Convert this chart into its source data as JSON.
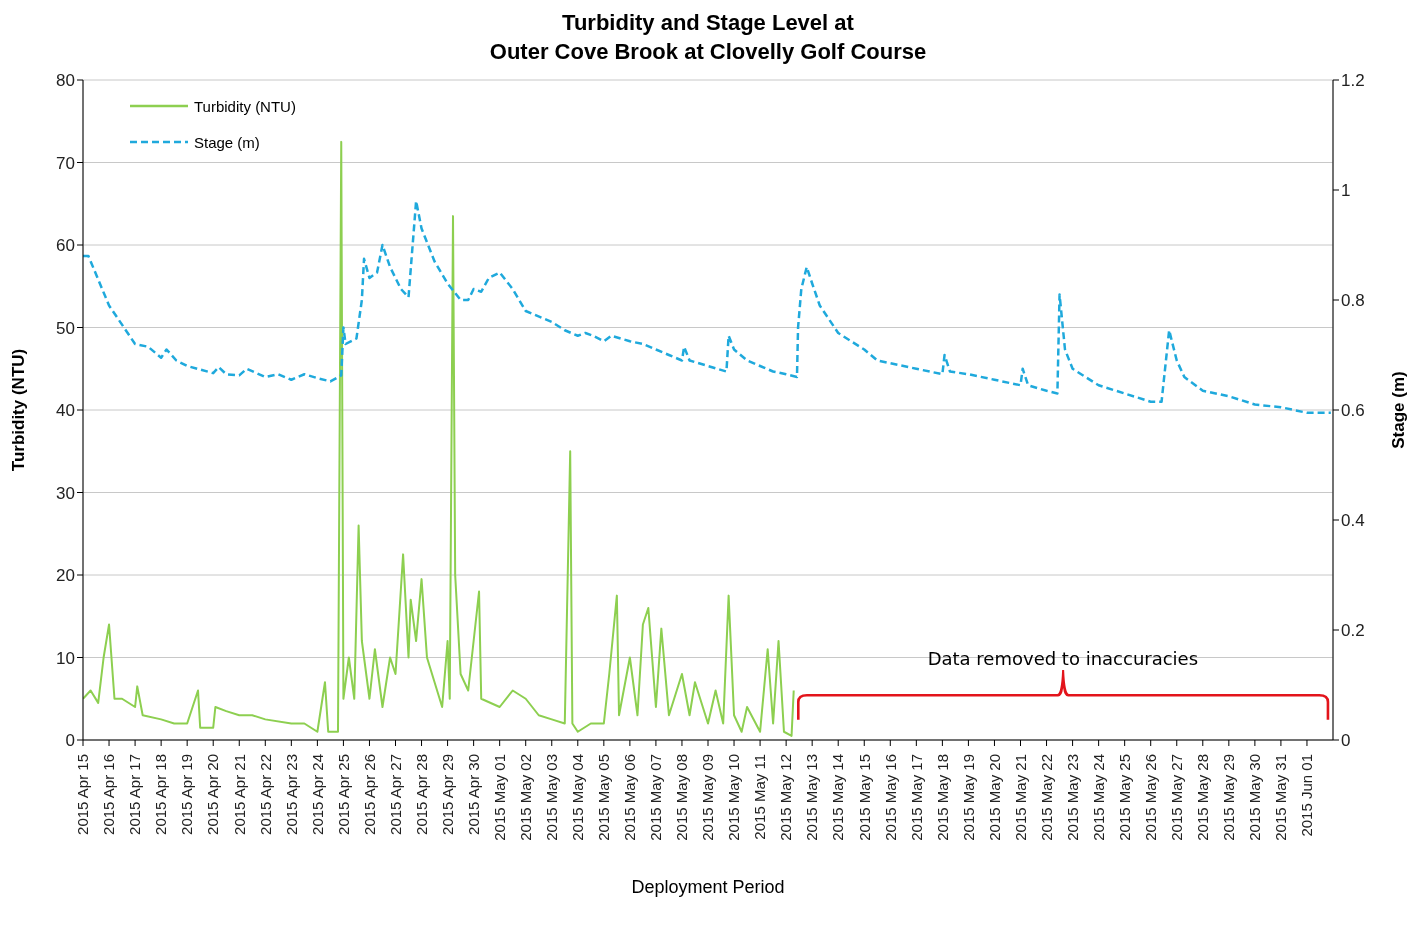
{
  "chart_data": {
    "type": "line",
    "title": "Turbidity and Stage Level at\nOuter Cove Brook at Clovelly Golf Course",
    "xlabel": "Deployment  Period",
    "ylabel": "Turbidity (NTU)",
    "y2label": "Stage (m)",
    "annotations": [
      "Data removed to inaccuracies"
    ],
    "xlim": [
      "2015-04-15",
      "2015-06-02"
    ],
    "xticks": [
      {
        "value": "2015-04-15",
        "label": "2015 Apr 15"
      },
      {
        "value": "2015-04-16",
        "label": "2015 Apr 16"
      },
      {
        "value": "2015-04-17",
        "label": "2015 Apr 17"
      },
      {
        "value": "2015-04-18",
        "label": "2015 Apr 18"
      },
      {
        "value": "2015-04-19",
        "label": "2015 Apr 19"
      },
      {
        "value": "2015-04-20",
        "label": "2015 Apr 20"
      },
      {
        "value": "2015-04-21",
        "label": "2015 Apr 21"
      },
      {
        "value": "2015-04-22",
        "label": "2015 Apr 22"
      },
      {
        "value": "2015-04-23",
        "label": "2015 Apr 23"
      },
      {
        "value": "2015-04-24",
        "label": "2015 Apr 24"
      },
      {
        "value": "2015-04-25",
        "label": "2015 Apr 25"
      },
      {
        "value": "2015-04-26",
        "label": "2015 Apr 26"
      },
      {
        "value": "2015-04-27",
        "label": "2015 Apr 27"
      },
      {
        "value": "2015-04-28",
        "label": "2015 Apr 28"
      },
      {
        "value": "2015-04-29",
        "label": "2015 Apr 29"
      },
      {
        "value": "2015-04-30",
        "label": "2015 Apr 30"
      },
      {
        "value": "2015-05-01",
        "label": "2015 May 01"
      },
      {
        "value": "2015-05-02",
        "label": "2015 May 02"
      },
      {
        "value": "2015-05-03",
        "label": "2015 May 03"
      },
      {
        "value": "2015-05-04",
        "label": "2015 May 04"
      },
      {
        "value": "2015-05-05",
        "label": "2015 May 05"
      },
      {
        "value": "2015-05-06",
        "label": "2015 May 06"
      },
      {
        "value": "2015-05-07",
        "label": "2015 May 07"
      },
      {
        "value": "2015-05-08",
        "label": "2015 May 08"
      },
      {
        "value": "2015-05-09",
        "label": "2015 May 09"
      },
      {
        "value": "2015-05-10",
        "label": "2015 May 10"
      },
      {
        "value": "2015-05-11",
        "label": "2015 May 11"
      },
      {
        "value": "2015-05-12",
        "label": "2015 May 12"
      },
      {
        "value": "2015-05-13",
        "label": "2015 May 13"
      },
      {
        "value": "2015-05-14",
        "label": "2015 May 14"
      },
      {
        "value": "2015-05-15",
        "label": "2015 May 15"
      },
      {
        "value": "2015-05-16",
        "label": "2015 May 16"
      },
      {
        "value": "2015-05-17",
        "label": "2015 May 17"
      },
      {
        "value": "2015-05-18",
        "label": "2015 May 18"
      },
      {
        "value": "2015-05-19",
        "label": "2015 May 19"
      },
      {
        "value": "2015-05-20",
        "label": "2015 May 20"
      },
      {
        "value": "2015-05-21",
        "label": "2015 May 21"
      },
      {
        "value": "2015-05-22",
        "label": "2015 May 22"
      },
      {
        "value": "2015-05-23",
        "label": "2015 May 23"
      },
      {
        "value": "2015-05-24",
        "label": "2015 May 24"
      },
      {
        "value": "2015-05-25",
        "label": "2015 May 25"
      },
      {
        "value": "2015-05-26",
        "label": "2015 May 26"
      },
      {
        "value": "2015-05-27",
        "label": "2015 May 27"
      },
      {
        "value": "2015-05-28",
        "label": "2015 May 28"
      },
      {
        "value": "2015-05-29",
        "label": "2015 May 29"
      },
      {
        "value": "2015-05-30",
        "label": "2015 May 30"
      },
      {
        "value": "2015-05-31",
        "label": "2015 May 31"
      },
      {
        "value": "2015-06-01",
        "label": "2015 Jun 01"
      }
    ],
    "ylim": [
      0,
      80
    ],
    "yticks": [
      0,
      10,
      20,
      30,
      40,
      50,
      60,
      70,
      80
    ],
    "y2lim": [
      0,
      1.2
    ],
    "y2ticks": [
      0,
      0.2,
      0.4,
      0.6,
      0.8,
      1,
      1.2
    ],
    "grid": true,
    "legend": "top left",
    "marker": "none",
    "series": [
      {
        "name": "Turbidity (NTU)",
        "color": "#8dcf50",
        "line_style": "solid",
        "x": [
          "2015-04-15",
          "2015-04-15T07:00",
          "2015-04-15T14:00",
          "2015-04-15T19:00",
          "2015-04-16",
          "2015-04-16T05:00",
          "2015-04-16T12:00",
          "2015-04-17",
          "2015-04-17T02:00",
          "2015-04-17T07:00",
          "2015-04-18",
          "2015-04-18T12:00",
          "2015-04-19",
          "2015-04-19T10:00",
          "2015-04-19T12:00",
          "2015-04-20",
          "2015-04-20T02:00",
          "2015-04-20T12:00",
          "2015-04-21",
          "2015-04-21T12:00",
          "2015-04-22",
          "2015-04-23",
          "2015-04-23T12:00",
          "2015-04-24",
          "2015-04-24T07:00",
          "2015-04-24T10:00",
          "2015-04-24T19:00",
          "2015-04-24T22:00",
          "2015-04-25",
          "2015-04-25T05:00",
          "2015-04-25T10:00",
          "2015-04-25T14:00",
          "2015-04-25T17:00",
          "2015-04-26",
          "2015-04-26T05:00",
          "2015-04-26T12:00",
          "2015-04-26T19:00",
          "2015-04-27",
          "2015-04-27T07:00",
          "2015-04-27T12:00",
          "2015-04-27T14:00",
          "2015-04-27T19:00",
          "2015-04-28",
          "2015-04-28T05:00",
          "2015-04-28T12:00",
          "2015-04-28T19:00",
          "2015-04-29",
          "2015-04-29T02:00",
          "2015-04-29T05:00",
          "2015-04-29T07:00",
          "2015-04-29T12:00",
          "2015-04-29T19:00",
          "2015-04-30T05:00",
          "2015-04-30T07:00",
          "2015-05-01",
          "2015-05-01T12:00",
          "2015-05-02",
          "2015-05-02T12:00",
          "2015-05-03",
          "2015-05-03T12:00",
          "2015-05-03T17:00",
          "2015-05-03T19:00",
          "2015-05-04",
          "2015-05-04T12:00",
          "2015-05-05",
          "2015-05-05T05:00",
          "2015-05-05T12:00",
          "2015-05-05T14:00",
          "2015-05-06",
          "2015-05-06T07:00",
          "2015-05-06T12:00",
          "2015-05-06T17:00",
          "2015-05-07",
          "2015-05-07T05:00",
          "2015-05-07T12:00",
          "2015-05-08",
          "2015-05-08T07:00",
          "2015-05-08T12:00",
          "2015-05-09",
          "2015-05-09T07:00",
          "2015-05-09T14:00",
          "2015-05-09T19:00",
          "2015-05-10",
          "2015-05-10T07:00",
          "2015-05-10T12:00",
          "2015-05-11",
          "2015-05-11T07:00",
          "2015-05-11T12:00",
          "2015-05-11T17:00",
          "2015-05-11T22:00",
          "2015-05-12T05:00",
          "2015-05-12T07:00"
        ],
        "values": [
          5,
          6,
          4.5,
          10,
          14,
          5,
          5,
          4,
          6.5,
          3,
          2.5,
          2,
          2,
          6,
          1.5,
          1.5,
          4,
          3.5,
          3,
          3,
          2.5,
          2,
          2,
          1,
          7,
          1,
          1,
          72.5,
          5,
          10,
          5,
          26,
          12,
          5,
          11,
          4,
          10,
          8,
          22.5,
          10,
          17,
          12,
          19.5,
          10,
          7,
          4,
          12,
          5,
          63.5,
          20,
          8,
          6,
          18,
          5,
          4,
          6,
          5,
          3,
          2.5,
          2,
          35,
          2,
          1,
          2,
          2,
          8,
          17.5,
          3,
          10,
          3,
          14,
          16,
          4,
          13.5,
          3,
          8,
          3,
          7,
          2,
          6,
          2,
          17.5,
          3,
          1,
          4,
          1,
          11,
          2,
          12,
          1,
          0.5,
          6
        ]
      },
      {
        "name": "Stage (m)",
        "color": "#1fa9dc",
        "line_style": "dashed",
        "axis": "y2",
        "x": [
          "2015-04-15",
          "2015-04-15T05:00",
          "2015-04-16",
          "2015-04-17",
          "2015-04-17T12:00",
          "2015-04-18",
          "2015-04-18T05:00",
          "2015-04-18T14:00",
          "2015-04-19",
          "2015-04-20",
          "2015-04-20T05:00",
          "2015-04-20T12:00",
          "2015-04-21",
          "2015-04-21T07:00",
          "2015-04-22",
          "2015-04-22T12:00",
          "2015-04-23",
          "2015-04-23T12:00",
          "2015-04-24",
          "2015-04-24T12:00",
          "2015-04-24T22:00",
          "2015-04-25",
          "2015-04-25T02:00",
          "2015-04-25T12:00",
          "2015-04-25T17:00",
          "2015-04-25T19:00",
          "2015-04-26",
          "2015-04-26T07:00",
          "2015-04-26T12:00",
          "2015-04-26T19:00",
          "2015-04-27T05:00",
          "2015-04-27T12:00",
          "2015-04-27T19:00",
          "2015-04-28",
          "2015-04-28T12:00",
          "2015-04-29",
          "2015-04-29T12:00",
          "2015-04-29T19:00",
          "2015-04-30",
          "2015-04-30T07:00",
          "2015-04-30T14:00",
          "2015-05-01",
          "2015-05-01T12:00",
          "2015-05-02",
          "2015-05-03",
          "2015-05-03T12:00",
          "2015-05-04",
          "2015-05-04T07:00",
          "2015-05-04T14:00",
          "2015-05-05",
          "2015-05-05T07:00",
          "2015-05-06",
          "2015-05-06T12:00",
          "2015-05-07",
          "2015-05-07T12:00",
          "2015-05-08",
          "2015-05-08T02:00",
          "2015-05-08T07:00",
          "2015-05-09",
          "2015-05-09T17:00",
          "2015-05-09T19:00",
          "2015-05-10",
          "2015-05-10T12:00",
          "2015-05-11",
          "2015-05-11T12:00",
          "2015-05-12",
          "2015-05-12T10:00",
          "2015-05-12T11:00",
          "2015-05-12T14:00",
          "2015-05-12T19:00",
          "2015-05-13",
          "2015-05-13T07:00",
          "2015-05-14",
          "2015-05-15",
          "2015-05-15T12:00",
          "2015-05-16",
          "2015-05-17",
          "2015-05-18",
          "2015-05-18T02:00",
          "2015-05-18T07:00",
          "2015-05-19",
          "2015-05-20",
          "2015-05-21",
          "2015-05-21T02:00",
          "2015-05-21T07:00",
          "2015-05-22",
          "2015-05-22T10:00",
          "2015-05-22T12:00",
          "2015-05-22T17:00",
          "2015-05-23",
          "2015-05-24",
          "2015-05-25",
          "2015-05-26",
          "2015-05-26T10:00",
          "2015-05-26T17:00",
          "2015-05-27",
          "2015-05-27T07:00",
          "2015-05-28",
          "2015-05-29",
          "2015-05-30",
          "2015-05-31",
          "2015-06-01",
          "2015-06-01T22:00"
        ],
        "values": [
          0.88,
          0.88,
          0.79,
          0.72,
          0.715,
          0.695,
          0.71,
          0.69,
          0.68,
          0.667,
          0.678,
          0.665,
          0.663,
          0.675,
          0.66,
          0.665,
          0.655,
          0.665,
          0.658,
          0.652,
          0.663,
          0.75,
          0.72,
          0.73,
          0.8,
          0.875,
          0.84,
          0.85,
          0.9,
          0.86,
          0.82,
          0.805,
          0.98,
          0.93,
          0.87,
          0.83,
          0.8,
          0.8,
          0.82,
          0.815,
          0.84,
          0.85,
          0.82,
          0.78,
          0.76,
          0.745,
          0.735,
          0.74,
          0.735,
          0.725,
          0.735,
          0.725,
          0.72,
          0.71,
          0.7,
          0.69,
          0.715,
          0.69,
          0.68,
          0.67,
          0.735,
          0.71,
          0.69,
          0.68,
          0.67,
          0.665,
          0.66,
          0.75,
          0.82,
          0.86,
          0.83,
          0.79,
          0.74,
          0.71,
          0.69,
          0.685,
          0.675,
          0.665,
          0.7,
          0.67,
          0.665,
          0.655,
          0.645,
          0.675,
          0.645,
          0.635,
          0.63,
          0.81,
          0.71,
          0.675,
          0.645,
          0.63,
          0.615,
          0.615,
          0.745,
          0.69,
          0.66,
          0.635,
          0.625,
          0.61,
          0.605,
          0.595,
          0.595
        ]
      }
    ]
  }
}
